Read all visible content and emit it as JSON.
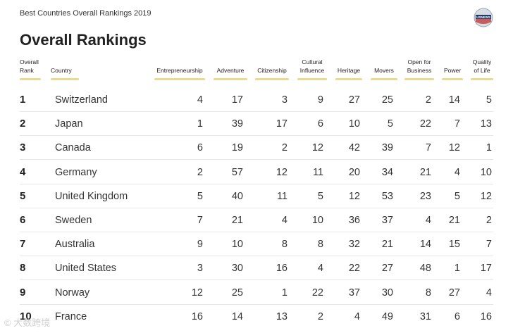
{
  "subtitle": "Best Countries Overall Rankings 2019",
  "logo_text": "USNEWS",
  "title": "Overall Rankings",
  "columns": [
    "Overall\nRank",
    "Country",
    "Entrepreneurship",
    "Adventure",
    "Citizenship",
    "Cultural\nInfluence",
    "Heritage",
    "Movers",
    "Open for\nBusiness",
    "Power",
    "Quality\nof Life"
  ],
  "rows": [
    {
      "rank": "1",
      "country": "Switzerland",
      "vals": [
        "4",
        "17",
        "3",
        "9",
        "27",
        "25",
        "2",
        "14",
        "5"
      ]
    },
    {
      "rank": "2",
      "country": "Japan",
      "vals": [
        "1",
        "39",
        "17",
        "6",
        "10",
        "5",
        "22",
        "7",
        "13"
      ]
    },
    {
      "rank": "3",
      "country": "Canada",
      "vals": [
        "6",
        "19",
        "2",
        "12",
        "42",
        "39",
        "7",
        "12",
        "1"
      ]
    },
    {
      "rank": "4",
      "country": "Germany",
      "vals": [
        "2",
        "57",
        "12",
        "11",
        "20",
        "34",
        "21",
        "4",
        "10"
      ]
    },
    {
      "rank": "5",
      "country": "United Kingdom",
      "vals": [
        "5",
        "40",
        "11",
        "5",
        "12",
        "53",
        "23",
        "5",
        "12"
      ]
    },
    {
      "rank": "6",
      "country": "Sweden",
      "vals": [
        "7",
        "21",
        "4",
        "10",
        "36",
        "37",
        "4",
        "21",
        "2"
      ]
    },
    {
      "rank": "7",
      "country": "Australia",
      "vals": [
        "9",
        "10",
        "8",
        "8",
        "32",
        "21",
        "14",
        "15",
        "7"
      ]
    },
    {
      "rank": "8",
      "country": "United States",
      "vals": [
        "3",
        "30",
        "16",
        "4",
        "22",
        "27",
        "48",
        "1",
        "17"
      ]
    },
    {
      "rank": "9",
      "country": "Norway",
      "vals": [
        "12",
        "25",
        "1",
        "22",
        "37",
        "30",
        "8",
        "27",
        "4"
      ]
    },
    {
      "rank": "10",
      "country": "France",
      "vals": [
        "16",
        "14",
        "13",
        "2",
        "4",
        "49",
        "31",
        "6",
        "16"
      ]
    }
  ],
  "watermark": "© 大数跨境"
}
